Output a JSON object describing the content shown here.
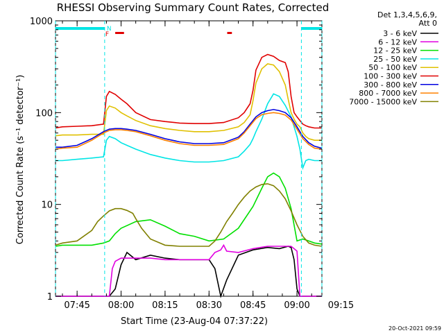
{
  "chart_data": {
    "type": "line",
    "title": "RHESSI Observing Summary Count Rates, Corrected",
    "xlabel": "Start Time (23-Aug-04 07:37:22)",
    "ylabel": "Corrected Count Rate (s⁻¹ detector⁻¹)",
    "yscale": "log",
    "ylim": [
      1,
      1000
    ],
    "xlim_minutes": [
      7.63,
      98.5
    ],
    "x_ticks": [
      {
        "label": "07:45",
        "minute": 15
      },
      {
        "label": "08:00",
        "minute": 30
      },
      {
        "label": "08:15",
        "minute": 45
      },
      {
        "label": "08:30",
        "minute": 60
      },
      {
        "label": "08:45",
        "minute": 75
      },
      {
        "label": "09:00",
        "minute": 90
      },
      {
        "label": "09:15",
        "minute": 105
      }
    ],
    "y_ticks": [
      {
        "label": "1",
        "value": 1
      },
      {
        "label": "10",
        "value": 10
      },
      {
        "label": "100",
        "value": 100
      },
      {
        "label": "1000",
        "value": 1000
      }
    ],
    "legend_header": [
      "Det 1,3,4,5,6,9,",
      "Att 0"
    ],
    "legend_placement": "right",
    "flags": {
      "N_label": "N",
      "F_label": "F",
      "night_color": "#00e5e5",
      "flare_color": "#e00000"
    },
    "footer_date": "20-Oct-2021 09:59",
    "series": [
      {
        "name": "3 - 6 keV",
        "color": "#000000",
        "x": [
          7.6,
          10,
          20,
          24,
          26,
          28,
          30,
          32,
          35,
          40,
          45,
          50,
          55,
          60,
          62,
          64,
          66,
          70,
          75,
          80,
          84,
          87,
          88,
          89,
          90,
          91,
          92,
          93,
          94,
          95,
          96,
          97,
          98.5
        ],
        "y": [
          1.0,
          1.0,
          1.0,
          1.0,
          1.0,
          1.2,
          2.2,
          3.0,
          2.5,
          2.8,
          2.6,
          2.5,
          2.5,
          2.5,
          2.0,
          1.0,
          1.5,
          2.8,
          3.2,
          3.4,
          3.3,
          3.5,
          3.4,
          2.5,
          1.2,
          1.0,
          1.0,
          1.0,
          1.0,
          1.0,
          1.0,
          1.0,
          1.0
        ]
      },
      {
        "name": "6 - 12 keV",
        "color": "#e000e0",
        "x": [
          7.6,
          26,
          27,
          28,
          30,
          35,
          40,
          45,
          50,
          55,
          60,
          62,
          64,
          65,
          66,
          70,
          75,
          80,
          85,
          88,
          89,
          90,
          91,
          92,
          93,
          98.5
        ],
        "y": [
          1.0,
          1.0,
          2.0,
          2.4,
          2.6,
          2.6,
          2.6,
          2.5,
          2.5,
          2.5,
          2.5,
          3.0,
          3.2,
          3.6,
          3.1,
          3.0,
          3.3,
          3.5,
          3.5,
          3.5,
          3.3,
          3.1,
          1.0,
          1.0,
          1.0,
          1.0
        ]
      },
      {
        "name": "12 - 25 keV",
        "color": "#00e000",
        "x": [
          7.6,
          10,
          20,
          24,
          26,
          28,
          30,
          35,
          40,
          45,
          50,
          55,
          60,
          65,
          70,
          75,
          78,
          80,
          82,
          84,
          86,
          88,
          90,
          92,
          94,
          96,
          98.5
        ],
        "y": [
          3.5,
          3.6,
          3.6,
          3.8,
          4.0,
          4.8,
          5.5,
          6.5,
          6.8,
          5.8,
          4.8,
          4.5,
          4.0,
          4.2,
          5.5,
          9.5,
          15.0,
          20.0,
          22.0,
          20.0,
          15.0,
          9.0,
          4.0,
          4.2,
          4.0,
          3.8,
          3.7
        ]
      },
      {
        "name": "25 - 50 keV",
        "color": "#00e5e5",
        "x": [
          7.6,
          10,
          15,
          20,
          24,
          25,
          26,
          28,
          30,
          32,
          35,
          40,
          45,
          50,
          55,
          60,
          65,
          70,
          72,
          74,
          75,
          76,
          78,
          80,
          82,
          84,
          86,
          88,
          90,
          91,
          92,
          93,
          94,
          96,
          98.5
        ],
        "y": [
          30,
          30,
          31,
          32,
          33,
          50,
          55,
          52,
          47,
          44,
          40,
          35,
          32,
          30,
          29,
          29,
          30,
          33,
          38,
          45,
          52,
          62,
          85,
          125,
          160,
          150,
          120,
          90,
          55,
          40,
          25,
          30,
          31,
          30,
          30
        ]
      },
      {
        "name": "50 - 100 keV",
        "color": "#e0c000",
        "x": [
          7.6,
          10,
          15,
          20,
          24,
          25,
          26,
          28,
          30,
          32,
          35,
          40,
          45,
          50,
          55,
          60,
          65,
          70,
          72,
          74,
          75,
          76,
          78,
          80,
          82,
          84,
          86,
          87,
          88,
          89,
          90,
          91,
          92,
          93,
          94,
          96,
          98.5
        ],
        "y": [
          56,
          57,
          57,
          58,
          58,
          105,
          118,
          112,
          100,
          92,
          82,
          72,
          67,
          64,
          62,
          62,
          64,
          70,
          78,
          95,
          135,
          210,
          300,
          340,
          330,
          280,
          200,
          140,
          100,
          85,
          75,
          70,
          60,
          55,
          52,
          50,
          50
        ]
      },
      {
        "name": "100 - 300 keV",
        "color": "#e00000",
        "x": [
          7.6,
          10,
          15,
          20,
          24,
          25,
          26,
          28,
          30,
          32,
          35,
          40,
          45,
          50,
          55,
          60,
          65,
          70,
          72,
          74,
          75,
          76,
          78,
          80,
          82,
          84,
          86,
          87,
          88,
          89,
          90,
          91,
          92,
          93,
          94,
          96,
          98.5
        ],
        "y": [
          68,
          70,
          71,
          72,
          75,
          150,
          170,
          158,
          140,
          125,
          100,
          84,
          80,
          77,
          76,
          76,
          78,
          88,
          100,
          125,
          175,
          290,
          400,
          430,
          410,
          370,
          350,
          280,
          150,
          100,
          90,
          82,
          75,
          72,
          70,
          68,
          68
        ]
      },
      {
        "name": "300 - 800 keV",
        "color": "#0000e0",
        "x": [
          7.6,
          10,
          15,
          20,
          24,
          26,
          28,
          30,
          32,
          35,
          40,
          45,
          50,
          55,
          60,
          65,
          70,
          72,
          74,
          76,
          78,
          80,
          82,
          84,
          86,
          88,
          90,
          92,
          94,
          96,
          98.5
        ],
        "y": [
          42,
          42,
          44,
          52,
          62,
          66,
          67,
          67,
          66,
          64,
          58,
          52,
          48,
          46,
          46,
          47,
          54,
          62,
          75,
          90,
          100,
          105,
          108,
          105,
          100,
          88,
          70,
          55,
          47,
          43,
          41
        ]
      },
      {
        "name": "800 - 7000 keV",
        "color": "#ff8000",
        "x": [
          7.6,
          10,
          15,
          20,
          24,
          26,
          28,
          30,
          32,
          35,
          40,
          45,
          50,
          55,
          60,
          65,
          70,
          72,
          74,
          76,
          78,
          80,
          82,
          84,
          86,
          88,
          90,
          92,
          94,
          96,
          98.5
        ],
        "y": [
          40,
          41,
          42,
          50,
          60,
          64,
          65,
          65,
          64,
          62,
          56,
          50,
          46,
          44,
          44,
          45,
          52,
          60,
          72,
          86,
          95,
          98,
          100,
          98,
          94,
          83,
          66,
          52,
          45,
          41,
          40
        ]
      },
      {
        "name": "7000 - 15000 keV",
        "color": "#808000",
        "x": [
          7.6,
          10,
          15,
          20,
          22,
          24,
          26,
          28,
          30,
          32,
          34,
          35,
          37,
          40,
          45,
          50,
          55,
          60,
          62,
          64,
          66,
          68,
          70,
          72,
          74,
          76,
          78,
          80,
          82,
          84,
          86,
          88,
          90,
          92,
          94,
          96,
          98.5
        ],
        "y": [
          3.6,
          3.8,
          4.0,
          5.2,
          6.5,
          7.5,
          8.5,
          9.0,
          9.0,
          8.6,
          8.0,
          7.0,
          5.5,
          4.2,
          3.6,
          3.5,
          3.5,
          3.5,
          4.0,
          5.0,
          6.5,
          8.0,
          10.0,
          12.0,
          14.0,
          15.5,
          16.5,
          16.8,
          16.0,
          14.0,
          11.5,
          8.5,
          6.0,
          4.5,
          3.8,
          3.6,
          3.5
        ]
      }
    ],
    "night_intervals": [
      [
        7.63,
        24.4
      ],
      [
        91.5,
        98.5
      ]
    ],
    "flare_markers": [
      {
        "start": 28.0,
        "end": 31.0
      },
      {
        "start": 66.2,
        "end": 67.8
      }
    ]
  }
}
